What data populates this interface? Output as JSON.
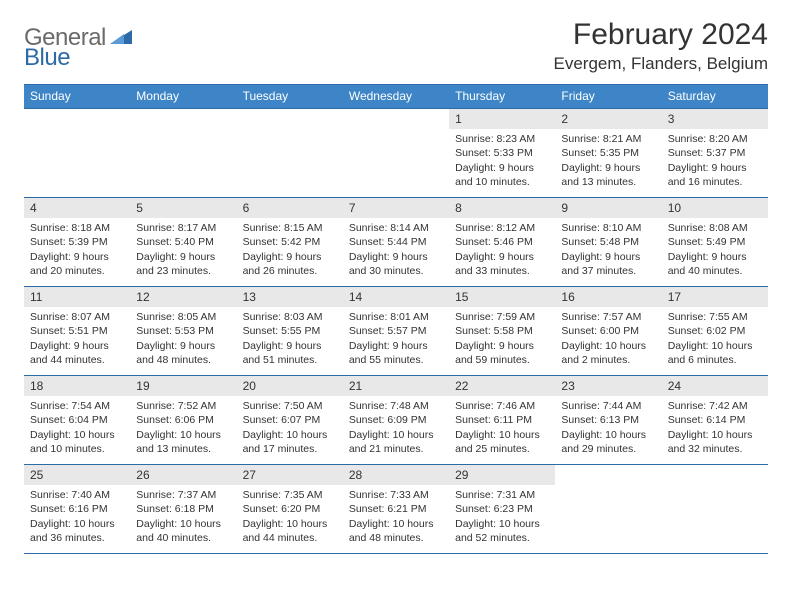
{
  "logo": {
    "general": "General",
    "blue": "Blue",
    "icon_color": "#2d6aa8"
  },
  "month_title": "February 2024",
  "location": "Evergem, Flanders, Belgium",
  "colors": {
    "header_bg": "#3d85c6",
    "header_text": "#ffffff",
    "rule": "#2d6aa8",
    "daynum_bg": "#e8e8e8",
    "body_text": "#333333",
    "page_bg": "#ffffff"
  },
  "day_names": [
    "Sunday",
    "Monday",
    "Tuesday",
    "Wednesday",
    "Thursday",
    "Friday",
    "Saturday"
  ],
  "weeks": [
    [
      {
        "day": "",
        "sunrise": "",
        "sunset": "",
        "daylight": ""
      },
      {
        "day": "",
        "sunrise": "",
        "sunset": "",
        "daylight": ""
      },
      {
        "day": "",
        "sunrise": "",
        "sunset": "",
        "daylight": ""
      },
      {
        "day": "",
        "sunrise": "",
        "sunset": "",
        "daylight": ""
      },
      {
        "day": "1",
        "sunrise": "Sunrise: 8:23 AM",
        "sunset": "Sunset: 5:33 PM",
        "daylight": "Daylight: 9 hours and 10 minutes."
      },
      {
        "day": "2",
        "sunrise": "Sunrise: 8:21 AM",
        "sunset": "Sunset: 5:35 PM",
        "daylight": "Daylight: 9 hours and 13 minutes."
      },
      {
        "day": "3",
        "sunrise": "Sunrise: 8:20 AM",
        "sunset": "Sunset: 5:37 PM",
        "daylight": "Daylight: 9 hours and 16 minutes."
      }
    ],
    [
      {
        "day": "4",
        "sunrise": "Sunrise: 8:18 AM",
        "sunset": "Sunset: 5:39 PM",
        "daylight": "Daylight: 9 hours and 20 minutes."
      },
      {
        "day": "5",
        "sunrise": "Sunrise: 8:17 AM",
        "sunset": "Sunset: 5:40 PM",
        "daylight": "Daylight: 9 hours and 23 minutes."
      },
      {
        "day": "6",
        "sunrise": "Sunrise: 8:15 AM",
        "sunset": "Sunset: 5:42 PM",
        "daylight": "Daylight: 9 hours and 26 minutes."
      },
      {
        "day": "7",
        "sunrise": "Sunrise: 8:14 AM",
        "sunset": "Sunset: 5:44 PM",
        "daylight": "Daylight: 9 hours and 30 minutes."
      },
      {
        "day": "8",
        "sunrise": "Sunrise: 8:12 AM",
        "sunset": "Sunset: 5:46 PM",
        "daylight": "Daylight: 9 hours and 33 minutes."
      },
      {
        "day": "9",
        "sunrise": "Sunrise: 8:10 AM",
        "sunset": "Sunset: 5:48 PM",
        "daylight": "Daylight: 9 hours and 37 minutes."
      },
      {
        "day": "10",
        "sunrise": "Sunrise: 8:08 AM",
        "sunset": "Sunset: 5:49 PM",
        "daylight": "Daylight: 9 hours and 40 minutes."
      }
    ],
    [
      {
        "day": "11",
        "sunrise": "Sunrise: 8:07 AM",
        "sunset": "Sunset: 5:51 PM",
        "daylight": "Daylight: 9 hours and 44 minutes."
      },
      {
        "day": "12",
        "sunrise": "Sunrise: 8:05 AM",
        "sunset": "Sunset: 5:53 PM",
        "daylight": "Daylight: 9 hours and 48 minutes."
      },
      {
        "day": "13",
        "sunrise": "Sunrise: 8:03 AM",
        "sunset": "Sunset: 5:55 PM",
        "daylight": "Daylight: 9 hours and 51 minutes."
      },
      {
        "day": "14",
        "sunrise": "Sunrise: 8:01 AM",
        "sunset": "Sunset: 5:57 PM",
        "daylight": "Daylight: 9 hours and 55 minutes."
      },
      {
        "day": "15",
        "sunrise": "Sunrise: 7:59 AM",
        "sunset": "Sunset: 5:58 PM",
        "daylight": "Daylight: 9 hours and 59 minutes."
      },
      {
        "day": "16",
        "sunrise": "Sunrise: 7:57 AM",
        "sunset": "Sunset: 6:00 PM",
        "daylight": "Daylight: 10 hours and 2 minutes."
      },
      {
        "day": "17",
        "sunrise": "Sunrise: 7:55 AM",
        "sunset": "Sunset: 6:02 PM",
        "daylight": "Daylight: 10 hours and 6 minutes."
      }
    ],
    [
      {
        "day": "18",
        "sunrise": "Sunrise: 7:54 AM",
        "sunset": "Sunset: 6:04 PM",
        "daylight": "Daylight: 10 hours and 10 minutes."
      },
      {
        "day": "19",
        "sunrise": "Sunrise: 7:52 AM",
        "sunset": "Sunset: 6:06 PM",
        "daylight": "Daylight: 10 hours and 13 minutes."
      },
      {
        "day": "20",
        "sunrise": "Sunrise: 7:50 AM",
        "sunset": "Sunset: 6:07 PM",
        "daylight": "Daylight: 10 hours and 17 minutes."
      },
      {
        "day": "21",
        "sunrise": "Sunrise: 7:48 AM",
        "sunset": "Sunset: 6:09 PM",
        "daylight": "Daylight: 10 hours and 21 minutes."
      },
      {
        "day": "22",
        "sunrise": "Sunrise: 7:46 AM",
        "sunset": "Sunset: 6:11 PM",
        "daylight": "Daylight: 10 hours and 25 minutes."
      },
      {
        "day": "23",
        "sunrise": "Sunrise: 7:44 AM",
        "sunset": "Sunset: 6:13 PM",
        "daylight": "Daylight: 10 hours and 29 minutes."
      },
      {
        "day": "24",
        "sunrise": "Sunrise: 7:42 AM",
        "sunset": "Sunset: 6:14 PM",
        "daylight": "Daylight: 10 hours and 32 minutes."
      }
    ],
    [
      {
        "day": "25",
        "sunrise": "Sunrise: 7:40 AM",
        "sunset": "Sunset: 6:16 PM",
        "daylight": "Daylight: 10 hours and 36 minutes."
      },
      {
        "day": "26",
        "sunrise": "Sunrise: 7:37 AM",
        "sunset": "Sunset: 6:18 PM",
        "daylight": "Daylight: 10 hours and 40 minutes."
      },
      {
        "day": "27",
        "sunrise": "Sunrise: 7:35 AM",
        "sunset": "Sunset: 6:20 PM",
        "daylight": "Daylight: 10 hours and 44 minutes."
      },
      {
        "day": "28",
        "sunrise": "Sunrise: 7:33 AM",
        "sunset": "Sunset: 6:21 PM",
        "daylight": "Daylight: 10 hours and 48 minutes."
      },
      {
        "day": "29",
        "sunrise": "Sunrise: 7:31 AM",
        "sunset": "Sunset: 6:23 PM",
        "daylight": "Daylight: 10 hours and 52 minutes."
      },
      {
        "day": "",
        "sunrise": "",
        "sunset": "",
        "daylight": ""
      },
      {
        "day": "",
        "sunrise": "",
        "sunset": "",
        "daylight": ""
      }
    ]
  ]
}
